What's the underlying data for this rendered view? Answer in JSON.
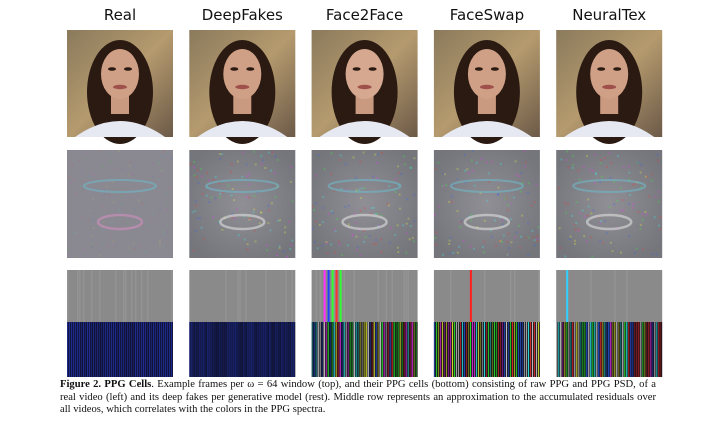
{
  "columns": [
    "Real",
    "DeepFakes",
    "Face2Face",
    "FaceSwap",
    "NeuralTex"
  ],
  "caption": {
    "label": "Figure 2.",
    "title": "PPG Cells",
    "text": ". Example frames per ω = 64 window (top), and their PPG cells (bottom) consisting of raw PPG and PPG PSD, of a real video (left) and its deep fakes per generative model (rest). Middle row represents an approximation to the accumulated residuals over all videos, which correlates with the colors in the PPG spectra."
  }
}
